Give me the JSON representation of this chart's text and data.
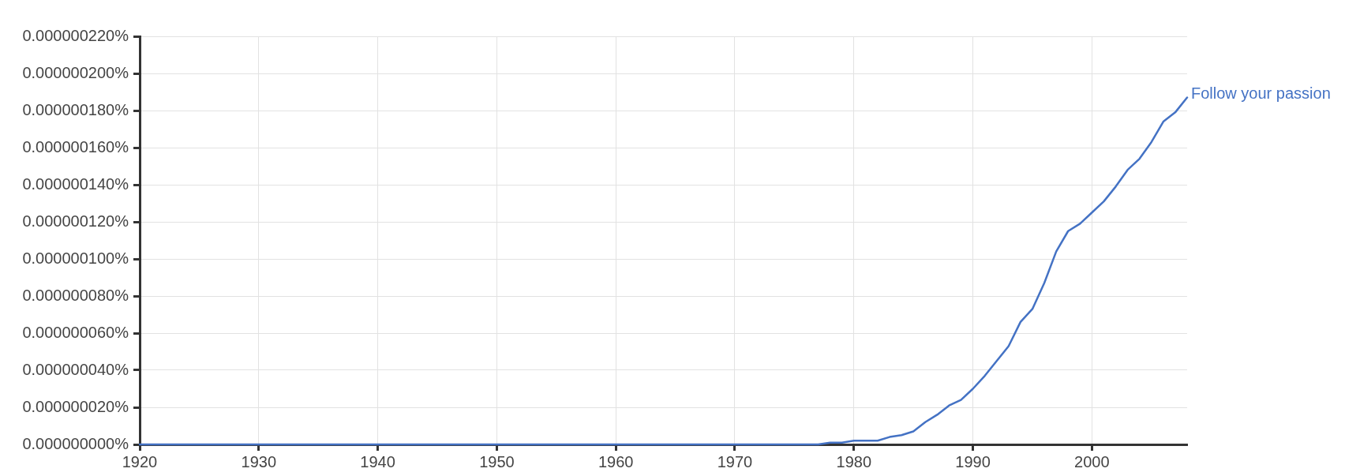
{
  "chart_data": {
    "type": "line",
    "x": [
      1920,
      1921,
      1922,
      1923,
      1924,
      1925,
      1926,
      1927,
      1928,
      1929,
      1930,
      1931,
      1932,
      1933,
      1934,
      1935,
      1936,
      1937,
      1938,
      1939,
      1940,
      1941,
      1942,
      1943,
      1944,
      1945,
      1946,
      1947,
      1948,
      1949,
      1950,
      1951,
      1952,
      1953,
      1954,
      1955,
      1956,
      1957,
      1958,
      1959,
      1960,
      1961,
      1962,
      1963,
      1964,
      1965,
      1966,
      1967,
      1968,
      1969,
      1970,
      1971,
      1972,
      1973,
      1974,
      1975,
      1976,
      1977,
      1978,
      1979,
      1980,
      1981,
      1982,
      1983,
      1984,
      1985,
      1986,
      1987,
      1988,
      1989,
      1990,
      1991,
      1992,
      1993,
      1994,
      1995,
      1996,
      1997,
      1998,
      1999,
      2000,
      2001,
      2002,
      2003,
      2004,
      2005,
      2006,
      2007,
      2008
    ],
    "series": [
      {
        "name": "Follow your passion",
        "color": "#4472c4",
        "values": [
          0,
          0,
          0,
          0,
          0,
          0,
          0,
          0,
          0,
          0,
          0,
          0,
          0,
          0,
          0,
          0,
          0,
          0,
          0,
          0,
          0,
          0,
          0,
          0,
          0,
          0,
          0,
          0,
          0,
          0,
          0,
          0,
          0,
          0,
          0,
          0,
          0,
          0,
          0,
          0,
          0,
          0,
          0,
          0,
          0,
          0,
          0,
          0,
          0,
          0,
          0,
          0,
          0,
          0,
          0,
          0,
          0,
          0,
          1e-09,
          1e-09,
          2e-09,
          2e-09,
          2e-09,
          4e-09,
          5e-09,
          7e-09,
          1.2e-08,
          1.6e-08,
          2.1e-08,
          2.4e-08,
          3e-08,
          3.7e-08,
          4.5e-08,
          5.3e-08,
          6.6e-08,
          7.3e-08,
          8.7e-08,
          1.04e-07,
          1.15e-07,
          1.19e-07,
          1.25e-07,
          1.31e-07,
          1.39e-07,
          1.48e-07,
          1.54e-07,
          1.63e-07,
          1.74e-07,
          1.79e-07,
          1.87e-07
        ]
      }
    ],
    "xlim": [
      1920,
      2008
    ],
    "xticks": [
      1920,
      1930,
      1940,
      1950,
      1960,
      1970,
      1980,
      1990,
      2000
    ],
    "ylim": [
      0,
      2.2e-07
    ],
    "yticks": [
      {
        "value": 0,
        "label": "0.000000000%"
      },
      {
        "value": 2e-08,
        "label": "0.000000020%"
      },
      {
        "value": 4e-08,
        "label": "0.000000040%"
      },
      {
        "value": 6e-08,
        "label": "0.000000060%"
      },
      {
        "value": 8e-08,
        "label": "0.000000080%"
      },
      {
        "value": 1e-07,
        "label": "0.000000100%"
      },
      {
        "value": 1.2e-07,
        "label": "0.000000120%"
      },
      {
        "value": 1.4e-07,
        "label": "0.000000140%"
      },
      {
        "value": 1.6e-07,
        "label": "0.000000160%"
      },
      {
        "value": 1.8e-07,
        "label": "0.000000180%"
      },
      {
        "value": 2e-07,
        "label": "0.000000200%"
      },
      {
        "value": 2.2e-07,
        "label": "0.000000220%"
      }
    ],
    "grid": true
  }
}
